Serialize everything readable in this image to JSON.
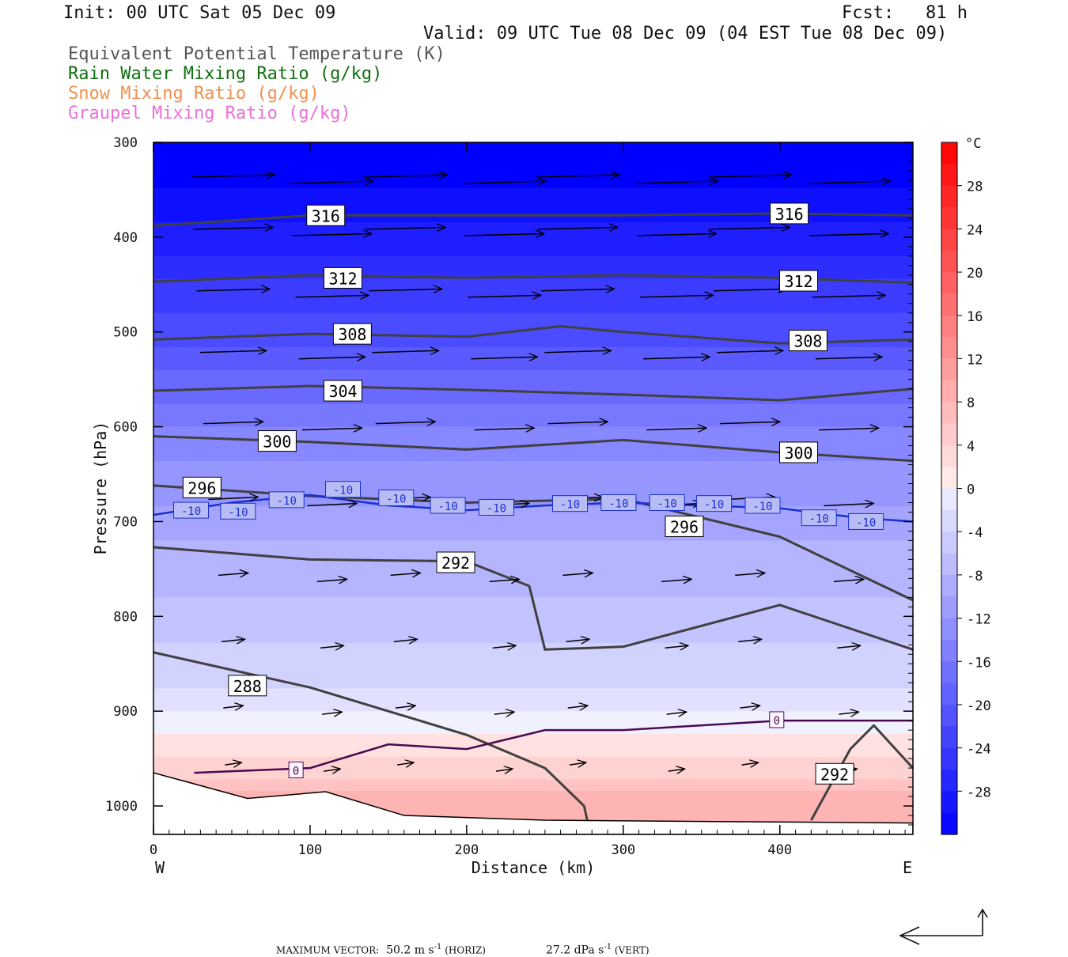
{
  "header": {
    "init": "Init: 00 UTC Sat 05 Dec 09",
    "fcst": "Fcst:   81 h",
    "valid": "Valid: 09 UTC Tue 08 Dec 09 (04 EST Tue 08 Dec 09)"
  },
  "legend": [
    {
      "label": "Equivalent Potential Temperature (K)",
      "color": "#555555"
    },
    {
      "label": "Rain Water Mixing Ratio (g/kg)",
      "color": "#107010"
    },
    {
      "label": "Snow Mixing Ratio (g/kg)",
      "color": "#ef9050"
    },
    {
      "label": "Graupel Mixing Ratio (g/kg)",
      "color": "#ee70d8"
    }
  ],
  "footer": {
    "max_vector_label": "MAXIMUM VECTOR:",
    "horiz_value": "50.2 m s",
    "horiz_exp": "-1",
    "horiz_unit": " (HORIZ)",
    "vert_value": "27.2 dPa s",
    "vert_exp": "-1",
    "vert_unit": " (VERT)"
  },
  "chart_data": {
    "type": "heatmap",
    "xlabel": "Distance (km)",
    "ylabel": "Pressure (hPa)",
    "x_ticks": [
      0,
      100,
      200,
      300,
      400
    ],
    "xlim": [
      0,
      485
    ],
    "x_end_labels": {
      "left": "W",
      "right": "E"
    },
    "y_ticks": [
      300,
      400,
      500,
      600,
      700,
      800,
      900,
      1000
    ],
    "ylim": [
      300,
      1030
    ],
    "y_scale": "linear, pressure increasing downward",
    "colorbar": {
      "unit": "°C",
      "ticks": [
        28,
        24,
        20,
        16,
        12,
        8,
        4,
        0,
        -4,
        -8,
        -12,
        -16,
        -20,
        -24,
        -28
      ],
      "range": [
        -32,
        32
      ]
    },
    "theta_e_contours": [
      {
        "value": 316,
        "x": [
          0,
          100,
          200,
          300,
          400,
          485
        ],
        "p": [
          388,
          377,
          377,
          377,
          375,
          377
        ]
      },
      {
        "value": 312,
        "x": [
          0,
          100,
          200,
          300,
          400,
          485
        ],
        "p": [
          447,
          440,
          443,
          440,
          443,
          448
        ]
      },
      {
        "value": 308,
        "x": [
          0,
          100,
          200,
          260,
          300,
          400,
          485
        ],
        "p": [
          508,
          502,
          505,
          494,
          500,
          512,
          508
        ]
      },
      {
        "value": 304,
        "x": [
          0,
          100,
          200,
          300,
          400,
          485
        ],
        "p": [
          562,
          557,
          561,
          566,
          572,
          560
        ]
      },
      {
        "value": 300,
        "x": [
          0,
          100,
          200,
          300,
          400,
          485
        ],
        "p": [
          610,
          616,
          624,
          614,
          627,
          636
        ]
      },
      {
        "value": 296,
        "x": [
          0,
          100,
          200,
          300,
          400,
          485
        ],
        "p": [
          662,
          673,
          680,
          676,
          716,
          783
        ]
      },
      {
        "value": 292,
        "x": [
          0,
          100,
          200,
          240,
          250,
          300,
          400,
          485
        ],
        "p": [
          727,
          740,
          742,
          768,
          835,
          832,
          788,
          835
        ]
      },
      {
        "value": 288,
        "x": [
          0,
          100,
          200,
          250,
          275,
          277
        ],
        "p": [
          838,
          875,
          925,
          960,
          1000,
          1015
        ]
      },
      {
        "value": 292,
        "x": [
          420,
          445,
          460,
          485
        ],
        "p": [
          1015,
          940,
          915,
          960
        ]
      }
    ],
    "contour_labels": [
      {
        "text": "316",
        "x": 110,
        "p": 377
      },
      {
        "text": "316",
        "x": 406,
        "p": 375
      },
      {
        "text": "312",
        "x": 121,
        "p": 443
      },
      {
        "text": "312",
        "x": 412,
        "p": 446
      },
      {
        "text": "308",
        "x": 127,
        "p": 502
      },
      {
        "text": "308",
        "x": 418,
        "p": 509
      },
      {
        "text": "304",
        "x": 121,
        "p": 562
      },
      {
        "text": "300",
        "x": 79,
        "p": 615
      },
      {
        "text": "300",
        "x": 412,
        "p": 627
      },
      {
        "text": "296",
        "x": 31,
        "p": 664
      },
      {
        "text": "296",
        "x": 339,
        "p": 705
      },
      {
        "text": "292",
        "x": 193,
        "p": 743
      },
      {
        "text": "288",
        "x": 60,
        "p": 873
      },
      {
        "text": "292",
        "x": 435,
        "p": 966
      }
    ],
    "temperature_contours": [
      {
        "value": -10,
        "x": [
          0,
          50,
          100,
          150,
          200,
          250,
          300,
          350,
          400,
          450,
          485
        ],
        "p": [
          693,
          680,
          672,
          683,
          688,
          683,
          680,
          683,
          686,
          696,
          700
        ]
      },
      {
        "value": 0,
        "x": [
          26,
          100,
          150,
          200,
          250,
          300,
          350,
          400,
          485
        ],
        "p": [
          965,
          960,
          935,
          940,
          920,
          920,
          915,
          910,
          910
        ]
      }
    ],
    "temperature_labels": [
      {
        "text": "-10",
        "x": 24,
        "p": 688
      },
      {
        "text": "-10",
        "x": 54,
        "p": 689
      },
      {
        "text": "-10",
        "x": 85,
        "p": 677
      },
      {
        "text": "-10",
        "x": 121,
        "p": 666
      },
      {
        "text": "-10",
        "x": 155,
        "p": 675
      },
      {
        "text": "-10",
        "x": 188,
        "p": 683
      },
      {
        "text": "-10",
        "x": 219,
        "p": 685
      },
      {
        "text": "-10",
        "x": 266,
        "p": 681
      },
      {
        "text": "-10",
        "x": 297,
        "p": 680
      },
      {
        "text": "-10",
        "x": 328,
        "p": 680
      },
      {
        "text": "-10",
        "x": 358,
        "p": 681
      },
      {
        "text": "-10",
        "x": 389,
        "p": 683
      },
      {
        "text": "-10",
        "x": 425,
        "p": 696
      },
      {
        "text": "-10",
        "x": 455,
        "p": 700
      },
      {
        "text": "0",
        "x": 91,
        "p": 962
      },
      {
        "text": "0",
        "x": 398,
        "p": 909
      }
    ],
    "wind_vector_levels": [
      {
        "p": 340,
        "u": 50,
        "w": 0.5
      },
      {
        "p": 395,
        "u": 48,
        "w": 0.4
      },
      {
        "p": 460,
        "u": 44,
        "w": 0.4
      },
      {
        "p": 525,
        "u": 40,
        "w": 0.4
      },
      {
        "p": 600,
        "u": 36,
        "w": 0.4
      },
      {
        "p": 680,
        "u": 30,
        "w": 0.5
      },
      {
        "p": 760,
        "u": 18,
        "w": 0.5
      },
      {
        "p": 830,
        "u": 14,
        "w": 0.5
      },
      {
        "p": 900,
        "u": 12,
        "w": 0.5
      },
      {
        "p": 960,
        "u": 10,
        "w": 0.5
      }
    ],
    "ground_pressure": [
      {
        "x": 0,
        "p": 965
      },
      {
        "x": 60,
        "p": 992
      },
      {
        "x": 110,
        "p": 985
      },
      {
        "x": 160,
        "p": 1010
      },
      {
        "x": 250,
        "p": 1015
      },
      {
        "x": 485,
        "p": 1018
      }
    ]
  }
}
